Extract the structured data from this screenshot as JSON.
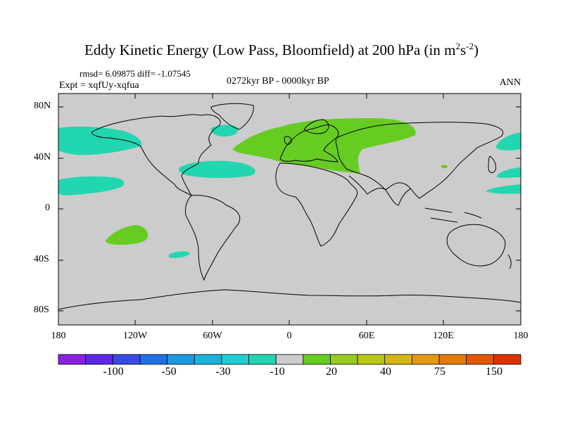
{
  "title": {
    "main": "Eddy Kinetic Energy (Low Pass, Bloomfield) at 200 hPa (in m",
    "sup1": "2",
    "mid": "s",
    "sup2": "-2",
    "end": ")"
  },
  "stats": "rmsd= 6.09875 diff= -1.07545",
  "expt": "Expt = xqfUy-xqfua",
  "period": "0272kyr BP - 0000kyr BP",
  "season": "ANN",
  "map": {
    "lat_labels": [
      "80N",
      "40N",
      "0",
      "40S",
      "80S"
    ],
    "lon_labels": [
      "180",
      "120W",
      "60W",
      "0",
      "60E",
      "120E",
      "180"
    ],
    "background_color": "#cccccc",
    "regions": [
      {
        "name": "north-atlantic-eurasia",
        "category": "20",
        "color": "#66cc22"
      },
      {
        "name": "south-pacific",
        "category": "20",
        "color": "#66cc22"
      },
      {
        "name": "north-pacific-west",
        "category": "-10",
        "color": "#22d6b0"
      },
      {
        "name": "north-pacific-east",
        "category": "-10",
        "color": "#22d6b0"
      },
      {
        "name": "north-atlantic-west",
        "category": "-10",
        "color": "#22d6b0"
      }
    ]
  },
  "colorbar": {
    "colors": [
      "#8a20e6",
      "#5a28e6",
      "#3a4ae6",
      "#2070e6",
      "#1c98e0",
      "#18b4dc",
      "#1ccfd0",
      "#22d6b0",
      "#cccccc",
      "#66cc22",
      "#96cc1a",
      "#bcc816",
      "#d8b610",
      "#e49a0c",
      "#e47a08",
      "#e25806",
      "#e03000"
    ],
    "labels": [
      "-100",
      "-50",
      "-30",
      "-10",
      "20",
      "40",
      "75",
      "150"
    ]
  }
}
